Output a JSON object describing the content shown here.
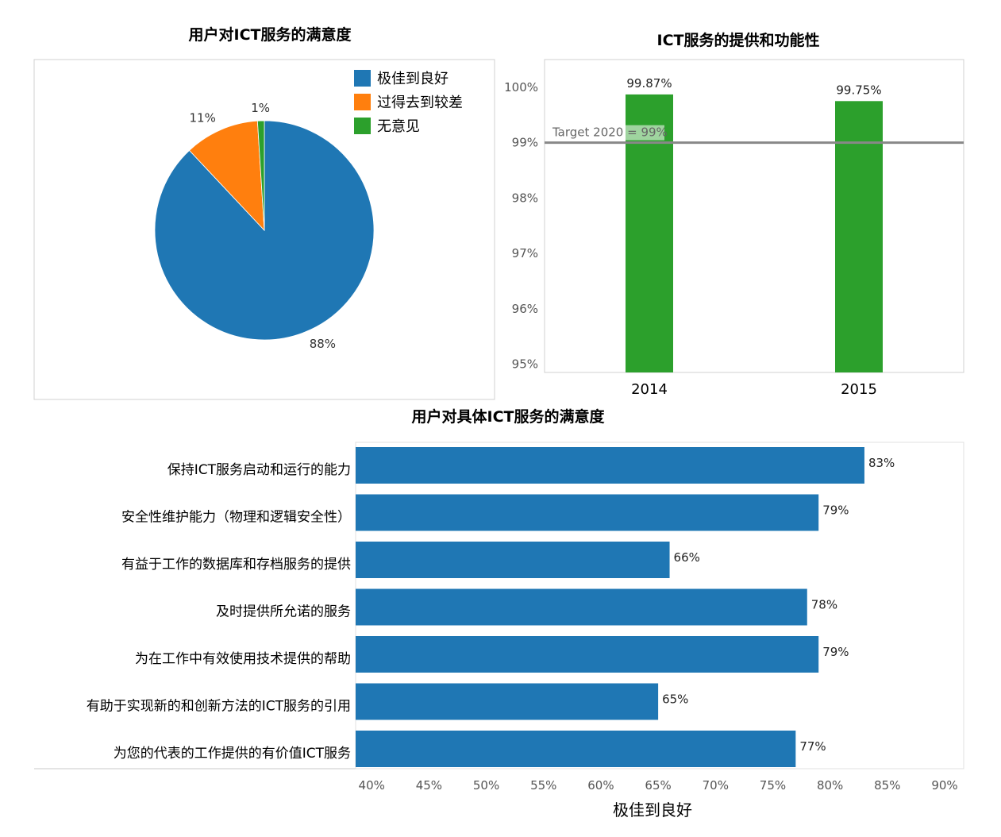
{
  "chart_data": [
    {
      "type": "pie",
      "title": "用户对ICT服务的满意度",
      "slices": [
        {
          "name": "极佳到良好",
          "value": 88,
          "label": "88%",
          "color": "#1f77b4"
        },
        {
          "name": "过得去到较差",
          "value": 11,
          "label": "11%",
          "color": "#ff7f0e"
        },
        {
          "name": "无意见",
          "value": 1,
          "label": "1%",
          "color": "#2ca02c"
        }
      ],
      "legend_position": "top-right"
    },
    {
      "type": "bar",
      "title": "ICT服务的提供和功能性",
      "categories": [
        "2014",
        "2015"
      ],
      "values": [
        99.87,
        99.75
      ],
      "value_labels": [
        "99.87%",
        "99.75%"
      ],
      "color": "#2ca02c",
      "ylim": [
        94.85,
        100.5
      ],
      "yticks": [
        95,
        96,
        97,
        98,
        99,
        100
      ],
      "ytick_labels": [
        "95%",
        "96%",
        "97%",
        "98%",
        "99%",
        "100%"
      ],
      "reference_line": {
        "value": 99,
        "label": "Target 2020 = 99%",
        "color": "#888888"
      }
    },
    {
      "type": "bar",
      "orientation": "horizontal",
      "title": "用户对具体ICT服务的满意度",
      "categories": [
        "保持ICT服务启动和运行的能力",
        "安全性维护能力（物理和逻辑安全性）",
        "有益于工作的数据库和存档服务的提供",
        "及时提供所允诺的服务",
        "为在工作中有效使用技术提供的帮助",
        "有助于实现新的和创新方法的ICT服务的引用",
        "为您的代表的工作提供的有价值ICT服务"
      ],
      "values": [
        83,
        79,
        66,
        78,
        79,
        65,
        77
      ],
      "value_labels": [
        "83%",
        "79%",
        "66%",
        "78%",
        "79%",
        "65%",
        "77%"
      ],
      "color": "#1f77b4",
      "xlim": [
        38.6,
        90
      ],
      "xticks": [
        40,
        45,
        50,
        55,
        60,
        65,
        70,
        75,
        80,
        85,
        90
      ],
      "xtick_labels": [
        "40%",
        "45%",
        "50%",
        "55%",
        "60%",
        "65%",
        "70%",
        "75%",
        "80%",
        "85%",
        "90%"
      ],
      "xlabel": "极佳到良好"
    }
  ]
}
